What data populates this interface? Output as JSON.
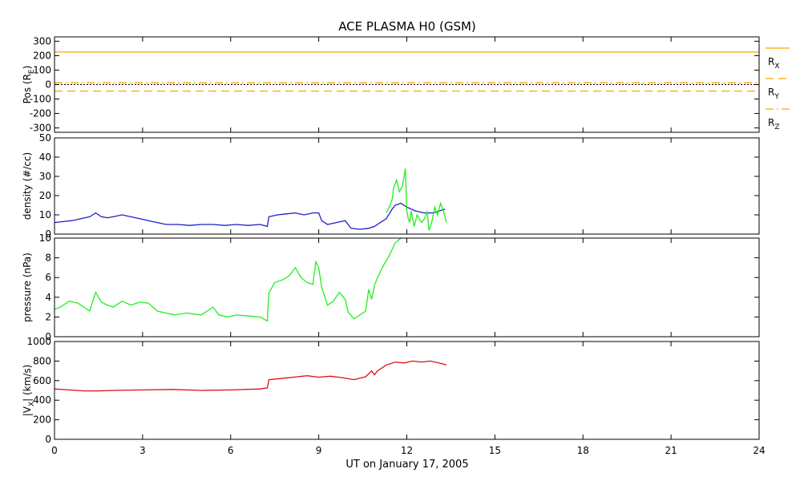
{
  "title": "ACE PLASMA H0 (GSM)",
  "colors": {
    "blue": "#1f1fcc",
    "green": "#22ee22",
    "red": "#dd1111",
    "orange": "#ffa500",
    "black": "#000000"
  },
  "chart_data": [
    {
      "type": "line",
      "id": "position",
      "ylabel": "Pos (R_E)",
      "ylabel_main": "Pos (R",
      "ylabel_sub": "E",
      "ylabel_end": ")",
      "ylim": [
        -330,
        330
      ],
      "yticks": [
        -300,
        -200,
        -100,
        0,
        100,
        200,
        300
      ],
      "xlim": [
        0,
        24
      ],
      "series": [
        {
          "name": "R_X",
          "label_main": "R",
          "label_sub": "X",
          "color": "orange",
          "style": "solid",
          "x": [
            0,
            24
          ],
          "y": [
            225,
            225
          ]
        },
        {
          "name": "R_Y",
          "label_main": "R",
          "label_sub": "Y",
          "color": "orange",
          "style": "dashed",
          "x": [
            0,
            24
          ],
          "y": [
            -45,
            -45
          ]
        },
        {
          "name": "R_Z",
          "label_main": "R",
          "label_sub": "Z",
          "color": "orange",
          "style": "dashdot",
          "x": [
            0,
            24
          ],
          "y": [
            12,
            12
          ]
        }
      ],
      "zero_line": true
    },
    {
      "type": "line",
      "id": "density",
      "ylabel": "density (#/cc)",
      "ylim": [
        0,
        50
      ],
      "yticks": [
        0,
        10,
        20,
        30,
        40,
        50
      ],
      "xlim": [
        0,
        24
      ],
      "series": [
        {
          "color": "blue",
          "x": [
            0,
            0.3,
            0.6,
            0.9,
            1.2,
            1.4,
            1.6,
            1.8,
            2.0,
            2.3,
            2.6,
            2.9,
            3.2,
            3.5,
            3.8,
            4.2,
            4.6,
            5.0,
            5.4,
            5.8,
            6.2,
            6.6,
            7.0,
            7.25,
            7.3,
            7.6,
            7.9,
            8.2,
            8.5,
            8.8,
            9.0,
            9.1,
            9.3,
            9.6,
            9.9,
            10.0,
            10.1,
            10.4,
            10.7,
            10.9,
            11.1,
            11.3,
            11.5,
            11.6,
            11.8,
            12.0,
            12.3,
            12.6,
            12.9,
            13.1,
            13.3
          ],
          "y": [
            6,
            6.5,
            7,
            8,
            9,
            11,
            9,
            8.5,
            9,
            10,
            9,
            8,
            7,
            6,
            5,
            5,
            4.5,
            5,
            5,
            4.5,
            5,
            4.5,
            5,
            4,
            9,
            10,
            10.5,
            11,
            10,
            11,
            11,
            7,
            5,
            6,
            7,
            5,
            3,
            2.5,
            3,
            4,
            6,
            8,
            13,
            15,
            16,
            14,
            12,
            11,
            11,
            12,
            13
          ]
        },
        {
          "color": "green",
          "x": [
            11.3,
            11.4,
            11.5,
            11.55,
            11.65,
            11.75,
            11.85,
            11.95,
            12.0,
            12.05,
            12.1,
            12.15,
            12.25,
            12.35,
            12.5,
            12.6,
            12.7,
            12.75,
            12.85,
            12.95,
            13.05,
            13.15,
            13.25,
            13.35
          ],
          "y": [
            11,
            14,
            18,
            24,
            28,
            22,
            25,
            34,
            12,
            8,
            6,
            12,
            4,
            10,
            6,
            8,
            12,
            2,
            6,
            14,
            10,
            16,
            12,
            6
          ]
        }
      ]
    },
    {
      "type": "line",
      "id": "pressure",
      "ylabel": "pressure (nPa)",
      "ylim": [
        0,
        10
      ],
      "yticks": [
        0,
        2,
        4,
        6,
        8,
        10
      ],
      "xlim": [
        0,
        24
      ],
      "series": [
        {
          "color": "green",
          "x": [
            0,
            0.2,
            0.5,
            0.8,
            1.0,
            1.2,
            1.4,
            1.6,
            1.8,
            2.0,
            2.3,
            2.6,
            2.9,
            3.2,
            3.5,
            3.8,
            4.1,
            4.5,
            5.0,
            5.2,
            5.4,
            5.6,
            5.9,
            6.2,
            6.6,
            7.0,
            7.25,
            7.3,
            7.5,
            7.8,
            8.0,
            8.2,
            8.4,
            8.6,
            8.8,
            8.9,
            9.0,
            9.1,
            9.3,
            9.5,
            9.7,
            9.9,
            10.0,
            10.2,
            10.4,
            10.6,
            10.7,
            10.8,
            10.9,
            11.0,
            11.2,
            11.4,
            11.6,
            11.8
          ],
          "y": [
            2.8,
            3.0,
            3.6,
            3.4,
            3.0,
            2.6,
            4.5,
            3.5,
            3.2,
            3.0,
            3.6,
            3.2,
            3.5,
            3.4,
            2.6,
            2.4,
            2.2,
            2.4,
            2.2,
            2.6,
            3.0,
            2.2,
            2.0,
            2.2,
            2.1,
            2.0,
            1.6,
            4.4,
            5.5,
            5.8,
            6.2,
            7.0,
            6.0,
            5.5,
            5.3,
            7.6,
            7.0,
            5.0,
            3.2,
            3.6,
            4.5,
            3.8,
            2.5,
            1.8,
            2.2,
            2.6,
            4.8,
            3.8,
            5.2,
            6.0,
            7.2,
            8.2,
            9.5,
            10.0
          ]
        }
      ]
    },
    {
      "type": "line",
      "id": "velocity",
      "ylabel": "|V_X| (km/s)",
      "ylabel_main": "|V",
      "ylabel_sub": "X",
      "ylabel_end": "| (km/s)",
      "ylim": [
        0,
        1000
      ],
      "yticks": [
        0,
        200,
        400,
        600,
        800,
        1000
      ],
      "xlim": [
        0,
        24
      ],
      "series": [
        {
          "color": "red",
          "x": [
            0,
            0.5,
            1.0,
            1.5,
            2.0,
            3.0,
            4.0,
            5.0,
            6.0,
            7.0,
            7.25,
            7.3,
            7.8,
            8.3,
            8.6,
            9.0,
            9.4,
            9.8,
            10.2,
            10.6,
            10.8,
            10.9,
            11.0,
            11.3,
            11.6,
            11.9,
            12.2,
            12.5,
            12.8,
            13.1,
            13.35
          ],
          "y": [
            515,
            505,
            495,
            495,
            500,
            505,
            510,
            500,
            505,
            515,
            525,
            610,
            625,
            640,
            650,
            635,
            645,
            630,
            610,
            640,
            700,
            660,
            700,
            760,
            790,
            780,
            800,
            790,
            800,
            780,
            760
          ]
        }
      ]
    }
  ],
  "x_axis": {
    "ticks": [
      0,
      3,
      6,
      9,
      12,
      15,
      18,
      21,
      24
    ],
    "tick_labels": [
      "0",
      "3",
      "6",
      "9",
      "12",
      "15",
      "18",
      "21",
      "24"
    ],
    "label": "UT on January 17, 2005"
  }
}
